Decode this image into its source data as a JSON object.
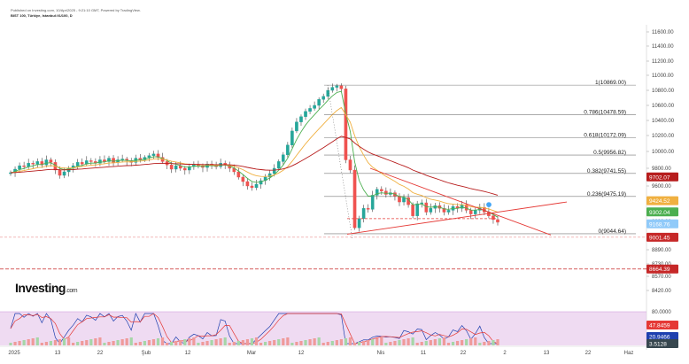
{
  "header": {
    "line1": "Published on Investing.com, 10/Apr/2025 - 9:21:10 GMT, Powered by TradingView.",
    "line2": "BIST 100, Türkiye, Istanbul:XU100, D"
  },
  "logo": {
    "brand": "Investing",
    "suffix": ".com"
  },
  "colors": {
    "up": "#26a69a",
    "down": "#ef5350",
    "ema_short": "#4caf50",
    "ema_mid": "#f0b040",
    "ema_long": "#b71c1c",
    "fib": "#9e9e9e",
    "triangle": "#e53935",
    "stoch_bg": "#e1bee7"
  },
  "chart_data": [
    {
      "type": "candlestick",
      "title": "BIST 100",
      "x_ticks": [
        "2025",
        "13",
        "22",
        "Şub",
        "12",
        "Mar",
        "12",
        "Nis",
        "11",
        "22",
        "2",
        "13",
        "22",
        "Haz"
      ],
      "price_ticks": [
        "11600.00",
        "11400.00",
        "11200.00",
        "11000.00",
        "10800.00",
        "10600.00",
        "10400.00",
        "10200.00",
        "10000.00",
        "9800.00",
        "9600.00",
        "9400.00",
        "9200.00",
        "9000.00",
        "8890.00",
        "8730.00",
        "8570.00",
        "8420.00"
      ],
      "ylim": [
        8420,
        11600
      ],
      "fibonacci": [
        {
          "label": "1(10869.00)",
          "value": 10869.0
        },
        {
          "label": "0.786(10478.59)",
          "value": 10478.59
        },
        {
          "label": "0.618(10172.09)",
          "value": 10172.09
        },
        {
          "label": "0.5(9956.82)",
          "value": 9956.82
        },
        {
          "label": "0.382(9741.55)",
          "value": 9741.55
        },
        {
          "label": "0.236(9475.19)",
          "value": 9475.19
        },
        {
          "label": "0(9044.64)",
          "value": 9044.64
        }
      ],
      "badges": [
        {
          "text": "9702.07",
          "color": "#b71c1c",
          "value": 9702.07
        },
        {
          "text": "9424.52",
          "color": "#f0b040",
          "value": 9424.52
        },
        {
          "text": "9302.04",
          "color": "#4caf50",
          "value": 9302.04
        },
        {
          "text": "9168.76",
          "color": "#90caf9",
          "value": 9168.76
        },
        {
          "text": "9001.45",
          "color": "#c62828",
          "value": 9001.45
        },
        {
          "text": "8664.39",
          "color": "#c62828",
          "value": 8664.39
        }
      ],
      "closes": [
        9750,
        9790,
        9830,
        9820,
        9860,
        9850,
        9880,
        9840,
        9900,
        9870,
        9780,
        9720,
        9760,
        9800,
        9830,
        9870,
        9850,
        9890,
        9880,
        9860,
        9900,
        9880,
        9920,
        9870,
        9900,
        9910,
        9890,
        9870,
        9920,
        9900,
        9930,
        9950,
        9970,
        9930,
        9880,
        9840,
        9790,
        9830,
        9800,
        9780,
        9820,
        9840,
        9830,
        9810,
        9850,
        9830,
        9820,
        9860,
        9840,
        9800,
        9760,
        9700,
        9650,
        9600,
        9580,
        9620,
        9660,
        9700,
        9740,
        9800,
        9880,
        9960,
        10080,
        10260,
        10380,
        10450,
        10520,
        10560,
        10600,
        10680,
        10720,
        10800,
        10840,
        10860,
        10820,
        9900,
        9780,
        9120,
        9230,
        9340,
        9330,
        9490,
        9560,
        9540,
        9500,
        9520,
        9480,
        9410,
        9460,
        9380,
        9260,
        9390,
        9400,
        9300,
        9340,
        9370,
        9340,
        9300,
        9320,
        9360,
        9340,
        9380,
        9320,
        9280,
        9320,
        9350,
        9300,
        9260,
        9220,
        9190
      ]
    },
    {
      "type": "line",
      "title": "Stochastic RSI",
      "price_ticks": [
        "80.0000"
      ],
      "badges": [
        {
          "text": "47.8459",
          "color": "#e53935",
          "value": 47.8459
        },
        {
          "text": "20.9466",
          "color": "#1e40af",
          "value": 20.9466
        },
        {
          "text": "3.5128",
          "color": "#37474f",
          "value": 3.5128
        }
      ]
    }
  ]
}
